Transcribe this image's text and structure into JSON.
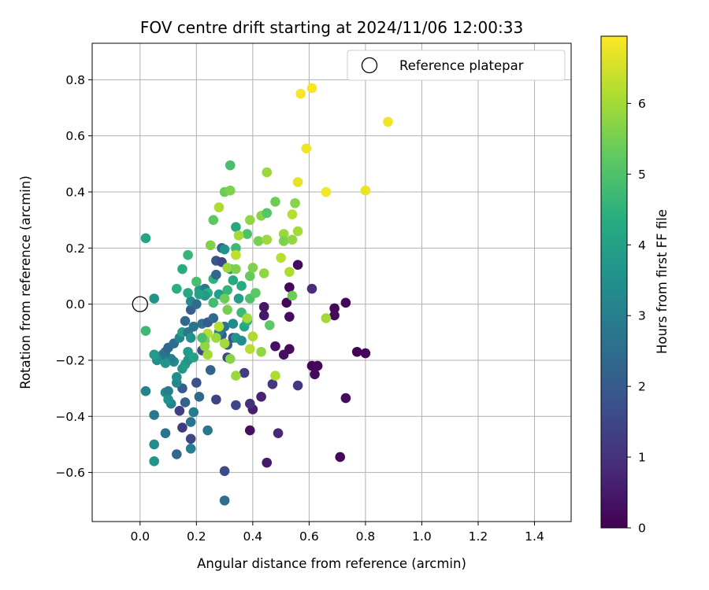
{
  "chart_data": {
    "type": "scatter",
    "title": "FOV centre drift starting at 2024/11/06 12:00:33",
    "xlabel": "Angular distance from reference (arcmin)",
    "ylabel": "Rotation from reference (arcmin)",
    "xlim": [
      -0.17,
      1.53
    ],
    "ylim": [
      -0.775,
      0.93
    ],
    "xticks": [
      0.0,
      0.2,
      0.4,
      0.6,
      0.8,
      1.0,
      1.2,
      1.4
    ],
    "xtick_labels": [
      "0.0",
      "0.2",
      "0.4",
      "0.6",
      "0.8",
      "1.0",
      "1.2",
      "1.4"
    ],
    "yticks": [
      -0.6,
      -0.4,
      -0.2,
      0.0,
      0.2,
      0.4,
      0.6,
      0.8
    ],
    "ytick_labels": [
      "−0.6",
      "−0.4",
      "−0.2",
      "0.0",
      "0.2",
      "0.4",
      "0.6",
      "0.8"
    ],
    "grid": true,
    "legend": {
      "placement": "top-right",
      "label": "Reference platepar"
    },
    "reference_point": {
      "x": 0.0,
      "y": 0.0
    },
    "colorbar": {
      "label": "Hours from first FF file",
      "range": [
        0,
        6.95
      ],
      "ticks": [
        0,
        1,
        2,
        3,
        4,
        5,
        6
      ],
      "tick_labels": [
        "0",
        "1",
        "2",
        "3",
        "4",
        "5",
        "6"
      ],
      "colormap": "viridis"
    },
    "points": [
      {
        "x": 0.52,
        "y": 0.005,
        "c": 0.1
      },
      {
        "x": 0.53,
        "y": 0.06,
        "c": 0.15
      },
      {
        "x": 0.56,
        "y": 0.14,
        "c": 0.2
      },
      {
        "x": 0.53,
        "y": -0.045,
        "c": 0.25
      },
      {
        "x": 0.51,
        "y": -0.18,
        "c": 0.3
      },
      {
        "x": 0.53,
        "y": -0.16,
        "c": 0.2
      },
      {
        "x": 0.48,
        "y": -0.15,
        "c": 0.35
      },
      {
        "x": 0.44,
        "y": -0.01,
        "c": 0.45
      },
      {
        "x": 0.44,
        "y": -0.04,
        "c": 0.5
      },
      {
        "x": 0.61,
        "y": -0.22,
        "c": 0.1
      },
      {
        "x": 0.63,
        "y": -0.22,
        "c": 0.15
      },
      {
        "x": 0.62,
        "y": -0.25,
        "c": 0.2
      },
      {
        "x": 0.69,
        "y": -0.015,
        "c": 0.15
      },
      {
        "x": 0.69,
        "y": -0.04,
        "c": 0.2
      },
      {
        "x": 0.73,
        "y": 0.005,
        "c": 0.1
      },
      {
        "x": 0.77,
        "y": -0.17,
        "c": 0.05
      },
      {
        "x": 0.8,
        "y": -0.175,
        "c": 0.1
      },
      {
        "x": 0.73,
        "y": -0.335,
        "c": 0.2
      },
      {
        "x": 0.71,
        "y": -0.545,
        "c": 0.15
      },
      {
        "x": 0.61,
        "y": 0.055,
        "c": 0.9
      },
      {
        "x": 0.56,
        "y": -0.29,
        "c": 1.2
      },
      {
        "x": 0.47,
        "y": -0.285,
        "c": 1.1
      },
      {
        "x": 0.43,
        "y": -0.33,
        "c": 0.7
      },
      {
        "x": 0.49,
        "y": -0.46,
        "c": 0.8
      },
      {
        "x": 0.45,
        "y": -0.565,
        "c": 0.5
      },
      {
        "x": 0.39,
        "y": -0.45,
        "c": 0.3
      },
      {
        "x": 0.4,
        "y": -0.375,
        "c": 0.6
      },
      {
        "x": 0.39,
        "y": -0.355,
        "c": 1.0
      },
      {
        "x": 0.34,
        "y": -0.36,
        "c": 1.5
      },
      {
        "x": 0.37,
        "y": -0.245,
        "c": 1.3
      },
      {
        "x": 0.3,
        "y": -0.595,
        "c": 1.6
      },
      {
        "x": 0.3,
        "y": -0.7,
        "c": 2.5
      },
      {
        "x": 0.27,
        "y": -0.34,
        "c": 1.4
      },
      {
        "x": 0.31,
        "y": -0.19,
        "c": 1.5
      },
      {
        "x": 0.33,
        "y": -0.12,
        "c": 1.7
      },
      {
        "x": 0.29,
        "y": -0.11,
        "c": 1.9
      },
      {
        "x": 0.31,
        "y": -0.145,
        "c": 2.0
      },
      {
        "x": 0.25,
        "y": -0.235,
        "c": 2.2
      },
      {
        "x": 0.22,
        "y": -0.165,
        "c": 1.6
      },
      {
        "x": 0.2,
        "y": -0.28,
        "c": 1.8
      },
      {
        "x": 0.21,
        "y": -0.33,
        "c": 2.3
      },
      {
        "x": 0.24,
        "y": -0.45,
        "c": 2.8
      },
      {
        "x": 0.18,
        "y": -0.48,
        "c": 1.5
      },
      {
        "x": 0.15,
        "y": -0.44,
        "c": 1.2
      },
      {
        "x": 0.14,
        "y": -0.38,
        "c": 1.3
      },
      {
        "x": 0.13,
        "y": -0.535,
        "c": 2.4
      },
      {
        "x": 0.18,
        "y": -0.515,
        "c": 3.0
      },
      {
        "x": 0.18,
        "y": -0.42,
        "c": 2.7
      },
      {
        "x": 0.19,
        "y": -0.385,
        "c": 2.9
      },
      {
        "x": 0.16,
        "y": -0.35,
        "c": 2.2
      },
      {
        "x": 0.15,
        "y": -0.3,
        "c": 2.0
      },
      {
        "x": 0.11,
        "y": -0.355,
        "c": 3.2
      },
      {
        "x": 0.09,
        "y": -0.46,
        "c": 2.6
      },
      {
        "x": 0.05,
        "y": -0.395,
        "c": 2.8
      },
      {
        "x": 0.05,
        "y": -0.5,
        "c": 3.3
      },
      {
        "x": 0.05,
        "y": -0.56,
        "c": 3.6
      },
      {
        "x": 0.02,
        "y": -0.31,
        "c": 3.1
      },
      {
        "x": 0.09,
        "y": -0.315,
        "c": 3.4
      },
      {
        "x": 0.1,
        "y": -0.31,
        "c": 3.0
      },
      {
        "x": 0.1,
        "y": -0.34,
        "c": 3.5
      },
      {
        "x": 0.13,
        "y": -0.28,
        "c": 3.2
      },
      {
        "x": 0.13,
        "y": -0.26,
        "c": 3.4
      },
      {
        "x": 0.15,
        "y": -0.23,
        "c": 3.7
      },
      {
        "x": 0.16,
        "y": -0.215,
        "c": 3.9
      },
      {
        "x": 0.17,
        "y": -0.2,
        "c": 3.6
      },
      {
        "x": 0.17,
        "y": -0.17,
        "c": 3.8
      },
      {
        "x": 0.19,
        "y": -0.19,
        "c": 4.0
      },
      {
        "x": 0.12,
        "y": -0.205,
        "c": 3.3
      },
      {
        "x": 0.11,
        "y": -0.195,
        "c": 3.0
      },
      {
        "x": 0.09,
        "y": -0.21,
        "c": 3.6
      },
      {
        "x": 0.08,
        "y": -0.18,
        "c": 2.9
      },
      {
        "x": 0.06,
        "y": -0.2,
        "c": 3.5
      },
      {
        "x": 0.05,
        "y": -0.18,
        "c": 3.8
      },
      {
        "x": 0.09,
        "y": -0.17,
        "c": 2.6
      },
      {
        "x": 0.1,
        "y": -0.155,
        "c": 2.3
      },
      {
        "x": 0.12,
        "y": -0.14,
        "c": 2.5
      },
      {
        "x": 0.14,
        "y": -0.12,
        "c": 3.2
      },
      {
        "x": 0.15,
        "y": -0.1,
        "c": 3.9
      },
      {
        "x": 0.17,
        "y": -0.1,
        "c": 2.8
      },
      {
        "x": 0.18,
        "y": -0.12,
        "c": 3.5
      },
      {
        "x": 0.19,
        "y": -0.08,
        "c": 2.7
      },
      {
        "x": 0.16,
        "y": -0.06,
        "c": 2.4
      },
      {
        "x": 0.18,
        "y": -0.02,
        "c": 2.1
      },
      {
        "x": 0.18,
        "y": 0.01,
        "c": 3.3
      },
      {
        "x": 0.2,
        "y": 0.0,
        "c": 2.5
      },
      {
        "x": 0.21,
        "y": 0.05,
        "c": 3.8
      },
      {
        "x": 0.2,
        "y": 0.08,
        "c": 4.9
      },
      {
        "x": 0.23,
        "y": 0.055,
        "c": 2.9
      },
      {
        "x": 0.26,
        "y": 0.09,
        "c": 4.5
      },
      {
        "x": 0.27,
        "y": 0.105,
        "c": 2.3
      },
      {
        "x": 0.27,
        "y": 0.155,
        "c": 1.8
      },
      {
        "x": 0.29,
        "y": 0.15,
        "c": 1.5
      },
      {
        "x": 0.29,
        "y": 0.2,
        "c": 2.2
      },
      {
        "x": 0.3,
        "y": 0.195,
        "c": 3.6
      },
      {
        "x": 0.32,
        "y": 0.125,
        "c": 3.9
      },
      {
        "x": 0.33,
        "y": 0.085,
        "c": 4.2
      },
      {
        "x": 0.31,
        "y": 0.05,
        "c": 4.6
      },
      {
        "x": 0.28,
        "y": 0.035,
        "c": 3.9
      },
      {
        "x": 0.26,
        "y": 0.005,
        "c": 4.8
      },
      {
        "x": 0.24,
        "y": 0.04,
        "c": 4.4
      },
      {
        "x": 0.23,
        "y": 0.03,
        "c": 3.7
      },
      {
        "x": 0.21,
        "y": 0.035,
        "c": 4.0
      },
      {
        "x": 0.22,
        "y": -0.07,
        "c": 2.6
      },
      {
        "x": 0.24,
        "y": -0.065,
        "c": 2.0
      },
      {
        "x": 0.26,
        "y": -0.05,
        "c": 2.4
      },
      {
        "x": 0.28,
        "y": -0.1,
        "c": 3.0
      },
      {
        "x": 0.3,
        "y": -0.08,
        "c": 2.7
      },
      {
        "x": 0.33,
        "y": -0.07,
        "c": 3.3
      },
      {
        "x": 0.34,
        "y": -0.12,
        "c": 3.6
      },
      {
        "x": 0.36,
        "y": -0.13,
        "c": 3.4
      },
      {
        "x": 0.37,
        "y": -0.08,
        "c": 4.1
      },
      {
        "x": 0.38,
        "y": -0.06,
        "c": 4.4
      },
      {
        "x": 0.36,
        "y": -0.03,
        "c": 4.7
      },
      {
        "x": 0.39,
        "y": 0.02,
        "c": 5.0
      },
      {
        "x": 0.35,
        "y": 0.02,
        "c": 3.9
      },
      {
        "x": 0.36,
        "y": 0.065,
        "c": 4.3
      },
      {
        "x": 0.39,
        "y": 0.1,
        "c": 5.3
      },
      {
        "x": 0.4,
        "y": 0.13,
        "c": 5.6
      },
      {
        "x": 0.41,
        "y": 0.04,
        "c": 5.2
      },
      {
        "x": 0.44,
        "y": 0.11,
        "c": 5.8
      },
      {
        "x": 0.42,
        "y": 0.225,
        "c": 5.5
      },
      {
        "x": 0.45,
        "y": 0.23,
        "c": 5.9
      },
      {
        "x": 0.43,
        "y": 0.315,
        "c": 5.7
      },
      {
        "x": 0.45,
        "y": 0.325,
        "c": 5.1
      },
      {
        "x": 0.48,
        "y": 0.365,
        "c": 5.4
      },
      {
        "x": 0.45,
        "y": 0.47,
        "c": 5.9
      },
      {
        "x": 0.39,
        "y": 0.3,
        "c": 5.8
      },
      {
        "x": 0.38,
        "y": 0.25,
        "c": 5.0
      },
      {
        "x": 0.34,
        "y": 0.275,
        "c": 4.2
      },
      {
        "x": 0.35,
        "y": 0.245,
        "c": 6.0
      },
      {
        "x": 0.34,
        "y": 0.2,
        "c": 4.7
      },
      {
        "x": 0.34,
        "y": 0.175,
        "c": 6.3
      },
      {
        "x": 0.31,
        "y": 0.13,
        "c": 5.9
      },
      {
        "x": 0.34,
        "y": 0.125,
        "c": 5.6
      },
      {
        "x": 0.3,
        "y": 0.4,
        "c": 5.4
      },
      {
        "x": 0.32,
        "y": 0.405,
        "c": 5.6
      },
      {
        "x": 0.32,
        "y": 0.495,
        "c": 4.9
      },
      {
        "x": 0.28,
        "y": 0.345,
        "c": 6.1
      },
      {
        "x": 0.25,
        "y": 0.21,
        "c": 5.6
      },
      {
        "x": 0.26,
        "y": 0.3,
        "c": 5.2
      },
      {
        "x": 0.5,
        "y": 0.165,
        "c": 6.2
      },
      {
        "x": 0.51,
        "y": 0.25,
        "c": 5.9
      },
      {
        "x": 0.51,
        "y": 0.225,
        "c": 5.6
      },
      {
        "x": 0.54,
        "y": 0.23,
        "c": 5.8
      },
      {
        "x": 0.56,
        "y": 0.26,
        "c": 6.0
      },
      {
        "x": 0.54,
        "y": 0.32,
        "c": 6.2
      },
      {
        "x": 0.55,
        "y": 0.36,
        "c": 5.7
      },
      {
        "x": 0.53,
        "y": 0.115,
        "c": 6.1
      },
      {
        "x": 0.54,
        "y": 0.03,
        "c": 5.4
      },
      {
        "x": 0.56,
        "y": 0.435,
        "c": 6.7
      },
      {
        "x": 0.59,
        "y": 0.555,
        "c": 6.8
      },
      {
        "x": 0.57,
        "y": 0.75,
        "c": 6.9
      },
      {
        "x": 0.61,
        "y": 0.77,
        "c": 6.9
      },
      {
        "x": 0.66,
        "y": 0.4,
        "c": 6.85
      },
      {
        "x": 0.8,
        "y": 0.405,
        "c": 6.75
      },
      {
        "x": 0.88,
        "y": 0.65,
        "c": 6.8
      },
      {
        "x": 0.66,
        "y": -0.05,
        "c": 6.0
      },
      {
        "x": 0.48,
        "y": -0.255,
        "c": 6.1
      },
      {
        "x": 0.46,
        "y": -0.075,
        "c": 5.2
      },
      {
        "x": 0.43,
        "y": -0.17,
        "c": 5.8
      },
      {
        "x": 0.39,
        "y": -0.16,
        "c": 6.2
      },
      {
        "x": 0.4,
        "y": -0.115,
        "c": 6.1
      },
      {
        "x": 0.38,
        "y": -0.05,
        "c": 6.0
      },
      {
        "x": 0.34,
        "y": -0.255,
        "c": 5.9
      },
      {
        "x": 0.32,
        "y": -0.195,
        "c": 5.7
      },
      {
        "x": 0.3,
        "y": -0.14,
        "c": 6.0
      },
      {
        "x": 0.28,
        "y": -0.08,
        "c": 6.2
      },
      {
        "x": 0.27,
        "y": -0.12,
        "c": 5.9
      },
      {
        "x": 0.24,
        "y": -0.18,
        "c": 6.0
      },
      {
        "x": 0.24,
        "y": -0.105,
        "c": 6.2
      },
      {
        "x": 0.23,
        "y": -0.13,
        "c": 5.5
      },
      {
        "x": 0.23,
        "y": -0.15,
        "c": 5.8
      },
      {
        "x": 0.22,
        "y": -0.12,
        "c": 4.9
      },
      {
        "x": 0.02,
        "y": 0.235,
        "c": 4.1
      },
      {
        "x": 0.15,
        "y": 0.125,
        "c": 4.3
      },
      {
        "x": 0.17,
        "y": 0.175,
        "c": 4.6
      },
      {
        "x": 0.13,
        "y": 0.055,
        "c": 4.4
      },
      {
        "x": 0.02,
        "y": -0.095,
        "c": 4.7
      },
      {
        "x": 0.05,
        "y": 0.02,
        "c": 3.6
      },
      {
        "x": 0.17,
        "y": 0.04,
        "c": 4.2
      },
      {
        "x": 0.3,
        "y": 0.02,
        "c": 5.4
      },
      {
        "x": 0.31,
        "y": -0.02,
        "c": 5.5
      }
    ]
  }
}
